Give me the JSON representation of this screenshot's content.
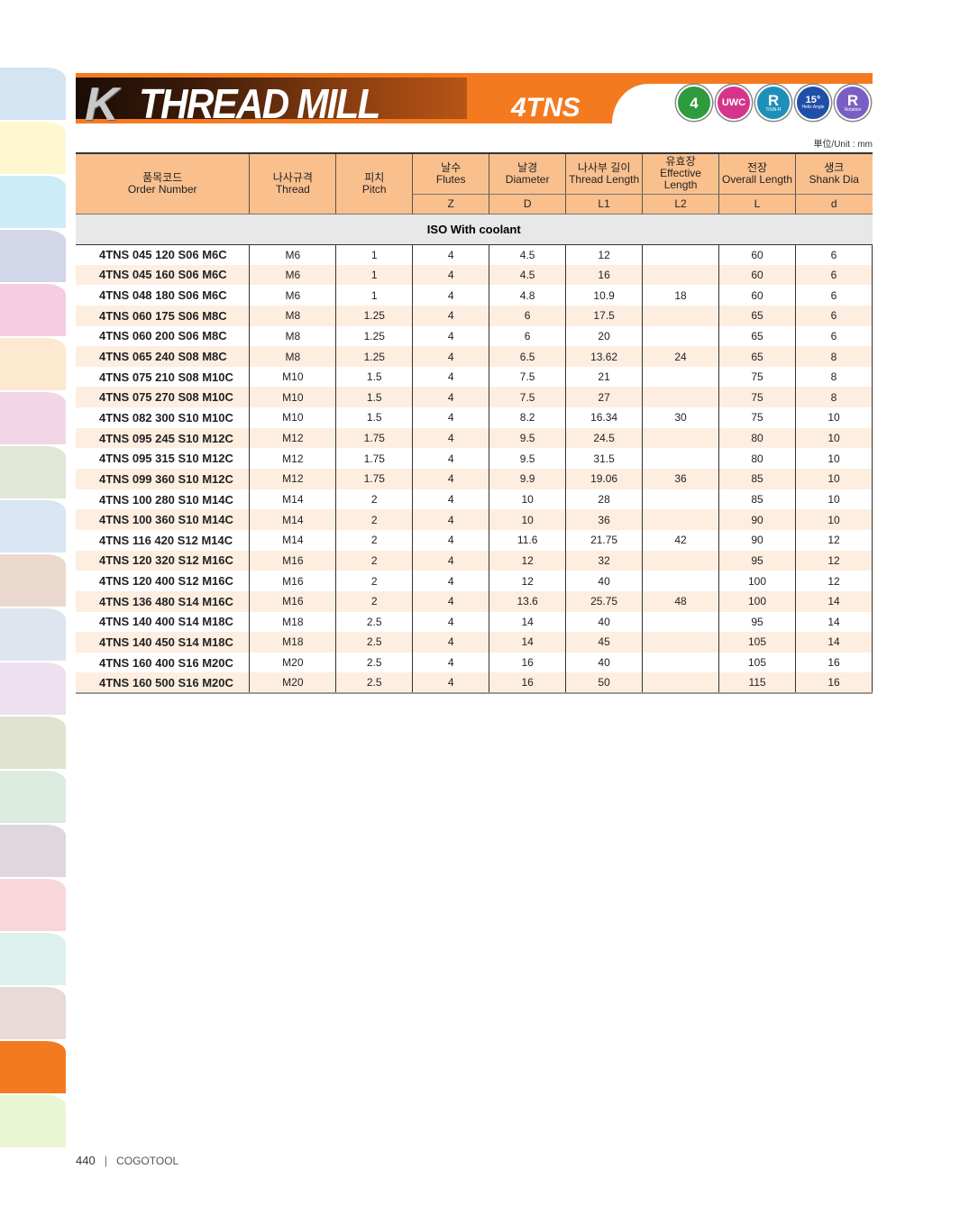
{
  "side_tabs": [
    "#d3e4f3",
    "#fff7d0",
    "#ccecf8",
    "#d3d6e8",
    "#f4cde0",
    "#fde9cf",
    "#f2d6e8",
    "#e0e7d5",
    "#d8e5f2",
    "#ead9cc",
    "#dfe5ee",
    "#eee0ef",
    "#dfe3d0",
    "#dcebe0",
    "#e0d6de",
    "#f9d6da",
    "#dcf0ee",
    "#e8dad7",
    "#f47a20",
    "#eaf5d4"
  ],
  "banner": {
    "letter": "K",
    "title": "THREAD MILL",
    "series": "4TNS",
    "accent": "#f47a20"
  },
  "badges": [
    {
      "label": "4",
      "sub": "",
      "color": "#2e9b3e",
      "icon": "four-flute-icon"
    },
    {
      "label": "UWC",
      "sub": "",
      "color": "#d6348c",
      "icon": "uwc-icon"
    },
    {
      "label": "R",
      "sub": "TiSiN-R",
      "color": "#1e8fb8",
      "icon": "coating-icon"
    },
    {
      "label": "15°",
      "sub": "Helix Angle",
      "color": "#1f4fa8",
      "icon": "helix-angle-icon"
    },
    {
      "label": "R",
      "sub": "Rotation",
      "color": "#7a5ec4",
      "icon": "rotation-icon"
    }
  ],
  "unit": "単位/Unit : mm",
  "headers": [
    {
      "ko": "품목코드",
      "en": "Order Number",
      "sym": ""
    },
    {
      "ko": "나사규격",
      "en": "Thread",
      "sym": ""
    },
    {
      "ko": "피치",
      "en": "Pitch",
      "sym": ""
    },
    {
      "ko": "날수",
      "en": "Flutes",
      "sym": "Z"
    },
    {
      "ko": "날경",
      "en": "Diameter",
      "sym": "D"
    },
    {
      "ko": "나사부 길이",
      "en": "Thread Length",
      "sym": "L1"
    },
    {
      "ko": "유효장",
      "en": "Effective Length",
      "sym": "L2"
    },
    {
      "ko": "전장",
      "en": "Overall Length",
      "sym": "L"
    },
    {
      "ko": "생크",
      "en": "Shank Dia",
      "sym": "d"
    }
  ],
  "section": "ISO With coolant",
  "rows": [
    [
      "4TNS 045 120 S06 M6C",
      "M6",
      "1",
      "4",
      "4.5",
      "12",
      "",
      "60",
      "6"
    ],
    [
      "4TNS 045 160 S06 M6C",
      "M6",
      "1",
      "4",
      "4.5",
      "16",
      "",
      "60",
      "6"
    ],
    [
      "4TNS 048 180 S06 M6C",
      "M6",
      "1",
      "4",
      "4.8",
      "10.9",
      "18",
      "60",
      "6"
    ],
    [
      "4TNS 060 175 S06 M8C",
      "M8",
      "1.25",
      "4",
      "6",
      "17.5",
      "",
      "65",
      "6"
    ],
    [
      "4TNS 060 200 S06 M8C",
      "M8",
      "1.25",
      "4",
      "6",
      "20",
      "",
      "65",
      "6"
    ],
    [
      "4TNS 065 240 S08 M8C",
      "M8",
      "1.25",
      "4",
      "6.5",
      "13.62",
      "24",
      "65",
      "8"
    ],
    [
      "4TNS 075 210 S08 M10C",
      "M10",
      "1.5",
      "4",
      "7.5",
      "21",
      "",
      "75",
      "8"
    ],
    [
      "4TNS 075 270 S08 M10C",
      "M10",
      "1.5",
      "4",
      "7.5",
      "27",
      "",
      "75",
      "8"
    ],
    [
      "4TNS 082 300 S10 M10C",
      "M10",
      "1.5",
      "4",
      "8.2",
      "16.34",
      "30",
      "75",
      "10"
    ],
    [
      "4TNS 095 245 S10 M12C",
      "M12",
      "1.75",
      "4",
      "9.5",
      "24.5",
      "",
      "80",
      "10"
    ],
    [
      "4TNS 095 315 S10 M12C",
      "M12",
      "1.75",
      "4",
      "9.5",
      "31.5",
      "",
      "80",
      "10"
    ],
    [
      "4TNS 099 360 S10 M12C",
      "M12",
      "1.75",
      "4",
      "9.9",
      "19.06",
      "36",
      "85",
      "10"
    ],
    [
      "4TNS 100 280 S10 M14C",
      "M14",
      "2",
      "4",
      "10",
      "28",
      "",
      "85",
      "10"
    ],
    [
      "4TNS 100 360 S10 M14C",
      "M14",
      "2",
      "4",
      "10",
      "36",
      "",
      "90",
      "10"
    ],
    [
      "4TNS 116 420 S12 M14C",
      "M14",
      "2",
      "4",
      "11.6",
      "21.75",
      "42",
      "90",
      "12"
    ],
    [
      "4TNS 120 320 S12 M16C",
      "M16",
      "2",
      "4",
      "12",
      "32",
      "",
      "95",
      "12"
    ],
    [
      "4TNS 120 400 S12 M16C",
      "M16",
      "2",
      "4",
      "12",
      "40",
      "",
      "100",
      "12"
    ],
    [
      "4TNS 136 480 S14 M16C",
      "M16",
      "2",
      "4",
      "13.6",
      "25.75",
      "48",
      "100",
      "14"
    ],
    [
      "4TNS 140 400 S14 M18C",
      "M18",
      "2.5",
      "4",
      "14",
      "40",
      "",
      "95",
      "14"
    ],
    [
      "4TNS 140 450 S14 M18C",
      "M18",
      "2.5",
      "4",
      "14",
      "45",
      "",
      "105",
      "14"
    ],
    [
      "4TNS 160 400 S16 M20C",
      "M20",
      "2.5",
      "4",
      "16",
      "40",
      "",
      "105",
      "16"
    ],
    [
      "4TNS 160 500 S16 M20C",
      "M20",
      "2.5",
      "4",
      "16",
      "50",
      "",
      "115",
      "16"
    ]
  ],
  "footer": {
    "page": "440",
    "separator": "|",
    "brand": "COGOTOOL"
  }
}
